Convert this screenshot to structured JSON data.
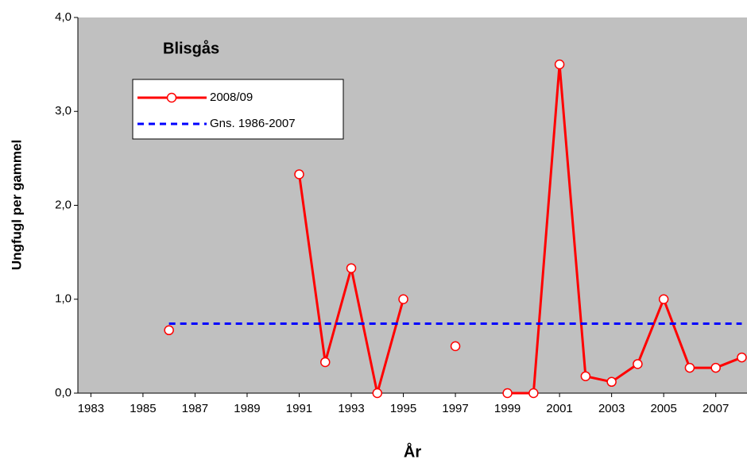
{
  "chart_data": {
    "type": "line",
    "title": "Blisgås",
    "x_label": "År",
    "y_label": "Ungfugl per gammel",
    "x": [
      1986,
      1987,
      1988,
      1989,
      1990,
      1991,
      1992,
      1993,
      1994,
      1995,
      1996,
      1997,
      1998,
      1999,
      2000,
      2001,
      2002,
      2003,
      2004,
      2005,
      2006,
      2007,
      2008
    ],
    "series": [
      {
        "name": "2008/09",
        "color": "#ff0000",
        "values": [
          0.67,
          null,
          null,
          null,
          null,
          2.33,
          0.33,
          1.33,
          0,
          1.0,
          null,
          0.5,
          null,
          0,
          0,
          3.5,
          0.18,
          0.12,
          0.31,
          1.0,
          0.27,
          0.27,
          0.38
        ]
      },
      {
        "name": "Gns. 1986-2007",
        "color": "#0000ff",
        "x": [
          1986,
          2008
        ],
        "values": [
          0.74,
          0.74
        ]
      }
    ],
    "xlim": [
      1982.5,
      2008.2
    ],
    "xticks": [
      1983,
      1985,
      1987,
      1989,
      1991,
      1993,
      1995,
      1997,
      1999,
      2001,
      2003,
      2005,
      2007
    ],
    "ylim": [
      0,
      4
    ],
    "yticks": [
      {
        "value": 0,
        "label": "0,0"
      },
      {
        "value": 1,
        "label": "1,0"
      },
      {
        "value": 2,
        "label": "2,0"
      },
      {
        "value": 3,
        "label": "3,0"
      },
      {
        "value": 4,
        "label": "4,0"
      }
    ],
    "background": "#c0c0c0",
    "legend": "upper left"
  }
}
